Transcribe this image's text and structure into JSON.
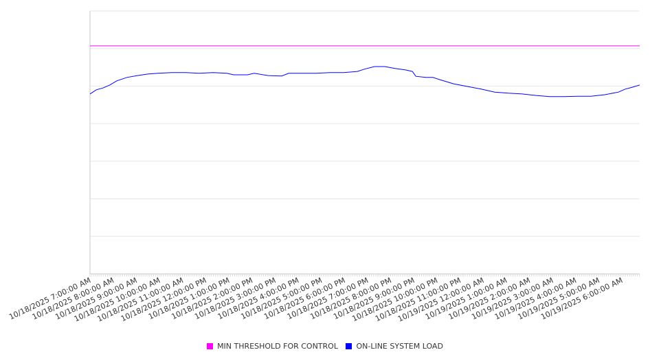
{
  "chart_data": {
    "type": "line",
    "title": "",
    "xlabel": "",
    "ylabel": "",
    "ylim": [
      0,
      7
    ],
    "y_gridlines": 7,
    "y_tick_labels_visible": false,
    "grid": true,
    "legend_position": "bottom-center",
    "x_unit": "hours since 10/18/2025 7:00:00 AM",
    "xlim": [
      0,
      23.77
    ],
    "x_tick_labels": [
      "10/18/2025 7:00:00 AM",
      "10/18/2025 8:00:00 AM",
      "10/18/2025 9:00:00 AM",
      "10/18/2025 10:00:00 AM",
      "10/18/2025 11:00:00 AM",
      "10/18/2025 12:00:00 PM",
      "10/18/2025 1:00:00 PM",
      "10/18/2025 2:00:00 PM",
      "10/18/2025 3:00:00 PM",
      "10/18/2025 4:00:00 PM",
      "10/18/2025 5:00:00 PM",
      "10/18/2025 6:00:00 PM",
      "10/18/2025 7:00:00 PM",
      "10/18/2025 8:00:00 PM",
      "10/18/2025 9:00:00 PM",
      "10/18/2025 10:00:00 PM",
      "10/18/2025 11:00:00 PM",
      "10/19/2025 12:00:00 AM",
      "10/19/2025 1:00:00 AM",
      "10/19/2025 2:00:00 AM",
      "10/19/2025 3:00:00 AM",
      "10/19/2025 4:00:00 AM",
      "10/19/2025 5:00:00 AM",
      "10/19/2025 6:00:00 AM"
    ],
    "series": [
      {
        "name": "MIN THRESHOLD FOR CONTROL",
        "color": "#ff00ff",
        "x": [
          0,
          23.77
        ],
        "values": [
          6.07,
          6.07
        ]
      },
      {
        "name": "ON-LINE SYSTEM LOAD",
        "color": "#0000ff",
        "x": [
          0,
          0.27,
          0.56,
          0.86,
          1.16,
          1.6,
          2.05,
          2.5,
          2.94,
          3.54,
          4.13,
          4.73,
          5.32,
          5.92,
          6.21,
          6.81,
          7.1,
          7.7,
          8.29,
          8.59,
          9.18,
          9.78,
          10.37,
          10.97,
          11.56,
          11.86,
          12.3,
          12.75,
          13.19,
          13.64,
          13.94,
          14.09,
          14.53,
          14.83,
          15.13,
          15.72,
          16.32,
          16.91,
          17.5,
          18.1,
          18.69,
          19.29,
          19.88,
          20.48,
          21.07,
          21.66,
          22.26,
          22.85,
          23.15,
          23.45,
          23.77
        ],
        "values": [
          4.79,
          4.9,
          4.95,
          5.03,
          5.14,
          5.23,
          5.28,
          5.32,
          5.34,
          5.36,
          5.36,
          5.34,
          5.36,
          5.34,
          5.3,
          5.3,
          5.34,
          5.28,
          5.27,
          5.34,
          5.34,
          5.34,
          5.36,
          5.36,
          5.39,
          5.45,
          5.52,
          5.52,
          5.47,
          5.43,
          5.39,
          5.26,
          5.23,
          5.23,
          5.17,
          5.06,
          4.99,
          4.92,
          4.84,
          4.81,
          4.79,
          4.75,
          4.72,
          4.72,
          4.73,
          4.73,
          4.77,
          4.84,
          4.92,
          4.97,
          5.03
        ]
      }
    ]
  }
}
